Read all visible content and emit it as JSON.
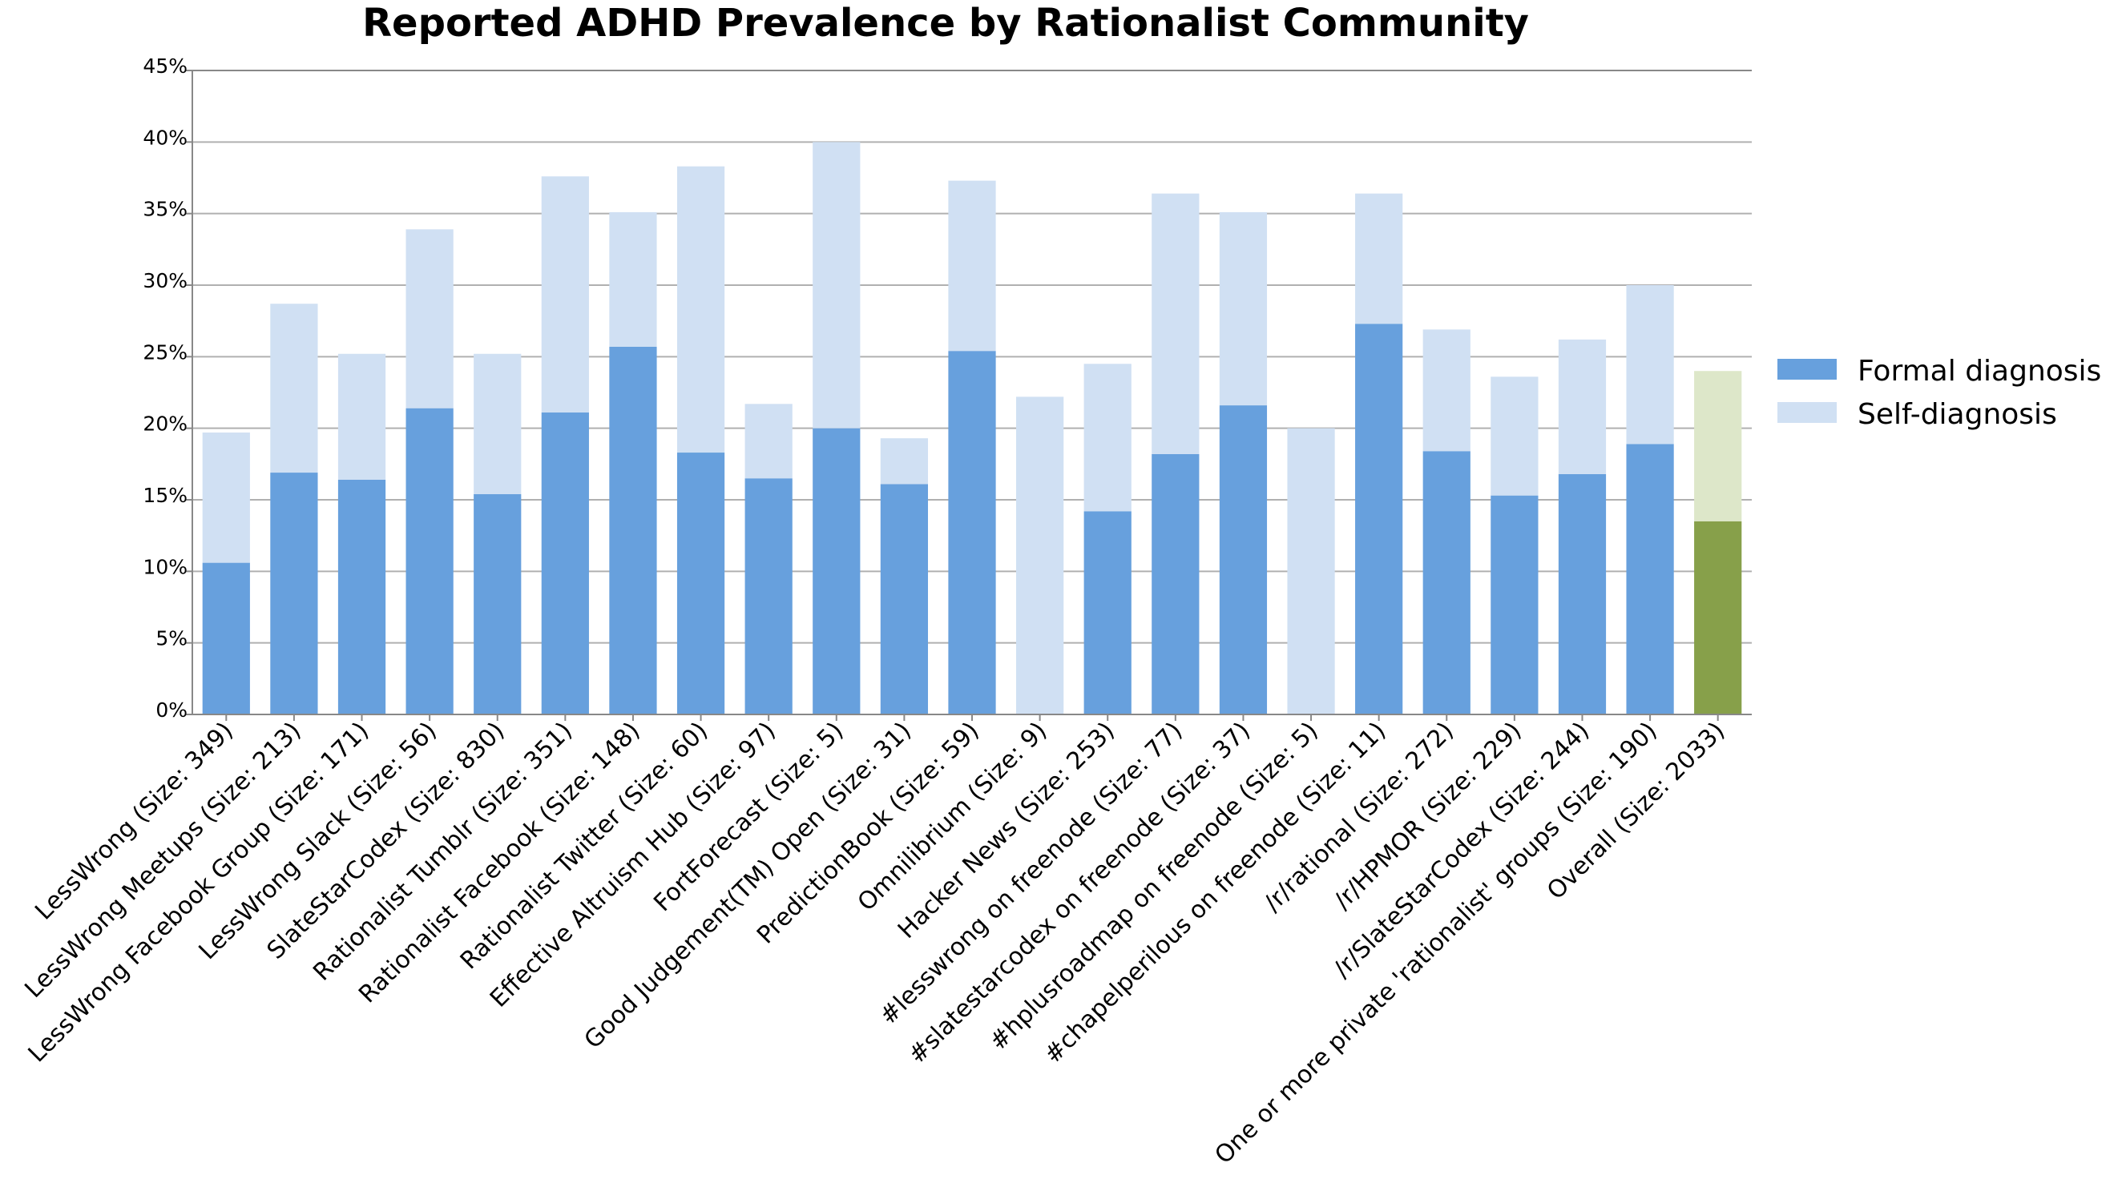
{
  "chart_data": {
    "type": "bar",
    "stacked": true,
    "title": "Reported ADHD Prevalence by Rationalist Community",
    "xlabel": "",
    "ylabel": "",
    "ylim": [
      0,
      45
    ],
    "yticks": [
      "0%",
      "5%",
      "10%",
      "15%",
      "20%",
      "25%",
      "30%",
      "35%",
      "40%",
      "45%"
    ],
    "grid": true,
    "legend_position": "right",
    "categories": [
      "LessWrong (Size: 349)",
      "LessWrong Meetups (Size: 213)",
      "LessWrong Facebook Group (Size: 171)",
      "LessWrong Slack (Size: 56)",
      "SlateStarCodex (Size: 830)",
      "Rationalist Tumblr (Size: 351)",
      "Rationalist Facebook (Size: 148)",
      "Rationalist Twitter (Size: 60)",
      "Effective Altruism Hub (Size: 97)",
      "FortForecast (Size: 5)",
      "Good Judgement(TM) Open (Size: 31)",
      "PredictionBook (Size: 59)",
      "Omnilibrium (Size: 9)",
      "Hacker News (Size: 253)",
      "#lesswrong on freenode (Size: 77)",
      "#slatestarcodex on freenode (Size: 37)",
      "#hplusroadmap on freenode (Size: 5)",
      "#chapelperilous on freenode (Size: 11)",
      "/r/rational (Size: 272)",
      "/r/HPMOR (Size: 229)",
      "/r/SlateStarCodex (Size: 244)",
      "One or more private 'rationalist' groups (Size: 190)",
      "Overall (Size: 2033)"
    ],
    "series": [
      {
        "name": "Formal diagnosis",
        "color": "#67a0dd",
        "values": [
          10.6,
          16.9,
          16.4,
          21.4,
          15.4,
          21.1,
          25.7,
          18.3,
          16.5,
          20.0,
          16.1,
          25.4,
          0.0,
          14.2,
          18.2,
          21.6,
          0.0,
          27.3,
          18.4,
          15.3,
          16.8,
          18.9,
          13.5
        ]
      },
      {
        "name": "Self-diagnosis",
        "color": "#d0e0f3",
        "values": [
          9.1,
          11.8,
          8.8,
          12.5,
          9.8,
          16.5,
          9.4,
          20.0,
          5.2,
          20.0,
          3.2,
          11.9,
          22.2,
          10.3,
          18.2,
          13.5,
          20.0,
          9.1,
          8.5,
          8.3,
          9.4,
          11.1,
          10.5
        ]
      }
    ],
    "highlight": {
      "category": "Overall (Size: 2033)",
      "colors": [
        "#87a04a",
        "#dde7c9"
      ]
    }
  }
}
